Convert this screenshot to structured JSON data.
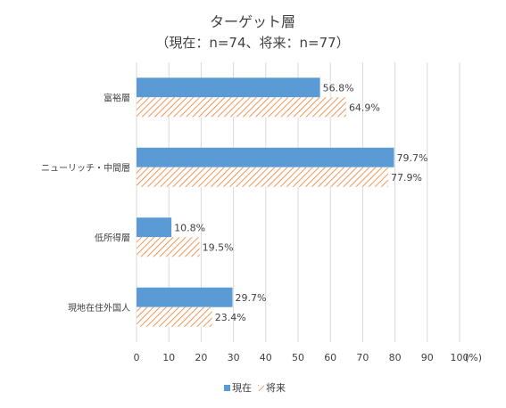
{
  "chart_data": {
    "type": "bar",
    "orientation": "horizontal",
    "title": "ターゲット層",
    "subtitle": "（現在：n=74、将来：n=77）",
    "categories": [
      "富裕層",
      "ニューリッチ・中間層",
      "低所得層",
      "現地在住外国人"
    ],
    "series": [
      {
        "name": "現在",
        "values": [
          56.8,
          79.7,
          10.8,
          29.7
        ],
        "labels": [
          "56.8%",
          "79.7%",
          "10.8%",
          "29.7%"
        ],
        "color": "#5b9bd5",
        "pattern": "solid"
      },
      {
        "name": "将来",
        "values": [
          64.9,
          77.9,
          19.5,
          23.4
        ],
        "labels": [
          "64.9%",
          "77.9%",
          "19.5%",
          "23.4%"
        ],
        "color": "#ed7d31",
        "pattern": "diagonal-hatch"
      }
    ],
    "x_ticks": [
      "0",
      "10",
      "20",
      "30",
      "40",
      "50",
      "60",
      "70",
      "80",
      "90",
      "100"
    ],
    "x_unit": "(%)",
    "xlim": [
      0,
      100
    ],
    "grid": true,
    "legend_position": "bottom"
  }
}
